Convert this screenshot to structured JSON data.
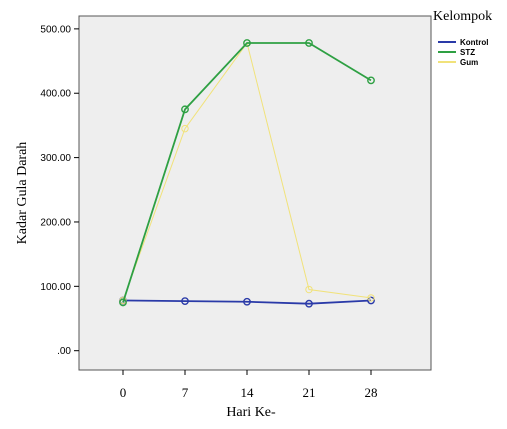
{
  "chart_data": {
    "type": "line",
    "xlabel": "Hari Ke-",
    "ylabel": "Kadar Gula Darah",
    "categories": [
      "0",
      "7",
      "14",
      "21",
      "28"
    ],
    "y_ticks": [
      ".00",
      "100.00",
      "200.00",
      "300.00",
      "400.00",
      "500.00"
    ],
    "ylim": [
      -30,
      520
    ],
    "grid": false,
    "legend_title": "Kelompok",
    "legend_position": "right",
    "series": [
      {
        "name": "Kontrol",
        "color": "#2a3aa8",
        "values": [
          78,
          77,
          76,
          73,
          78
        ]
      },
      {
        "name": "STZ",
        "color": "#2ea043",
        "values": [
          75,
          375,
          478,
          478,
          420
        ]
      },
      {
        "name": "Gum",
        "color": "#f1e27a",
        "values": [
          78,
          345,
          478,
          95,
          82
        ]
      }
    ]
  }
}
